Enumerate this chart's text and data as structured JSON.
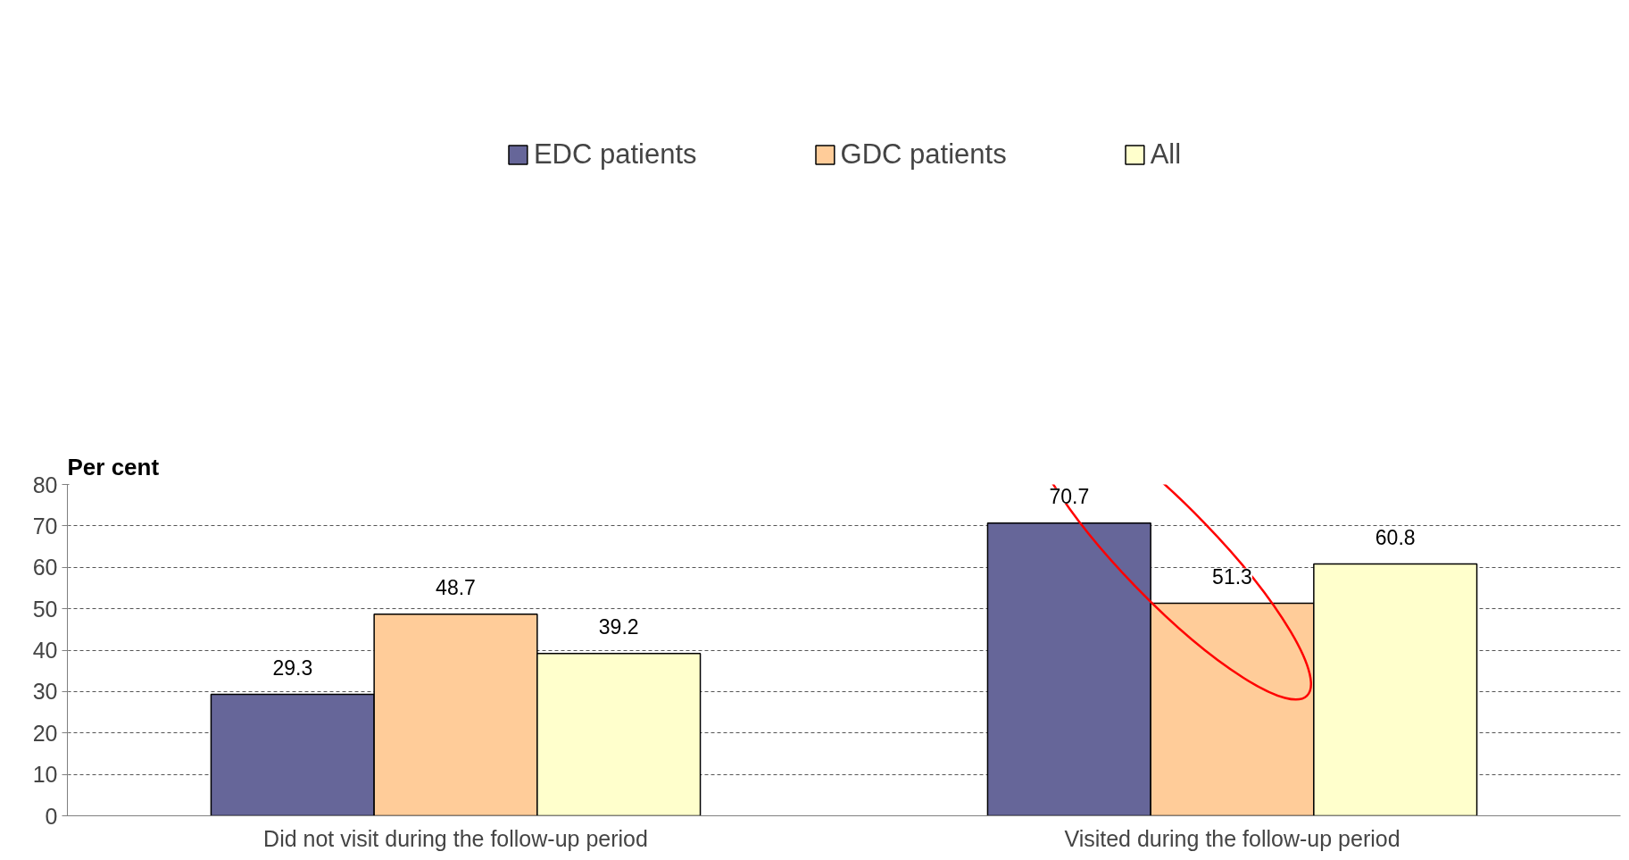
{
  "chart_data": {
    "type": "bar",
    "ylabel": "Per cent",
    "categories": [
      "Did not visit during the follow-up period",
      "Visited during the follow-up period"
    ],
    "series": [
      {
        "name": "EDC patients",
        "color": "#666699",
        "values": [
          29.3,
          70.7
        ]
      },
      {
        "name": "GDC patients",
        "color": "#ffcc99",
        "values": [
          48.7,
          51.3
        ]
      },
      {
        "name": "All",
        "color": "#ffffcc",
        "values": [
          39.2,
          60.8
        ]
      }
    ],
    "ylim": [
      0,
      80
    ],
    "yticks": [
      0,
      10,
      20,
      30,
      40,
      50,
      60,
      70,
      80
    ],
    "grid": "y",
    "legend": "top",
    "data_labels": true
  }
}
